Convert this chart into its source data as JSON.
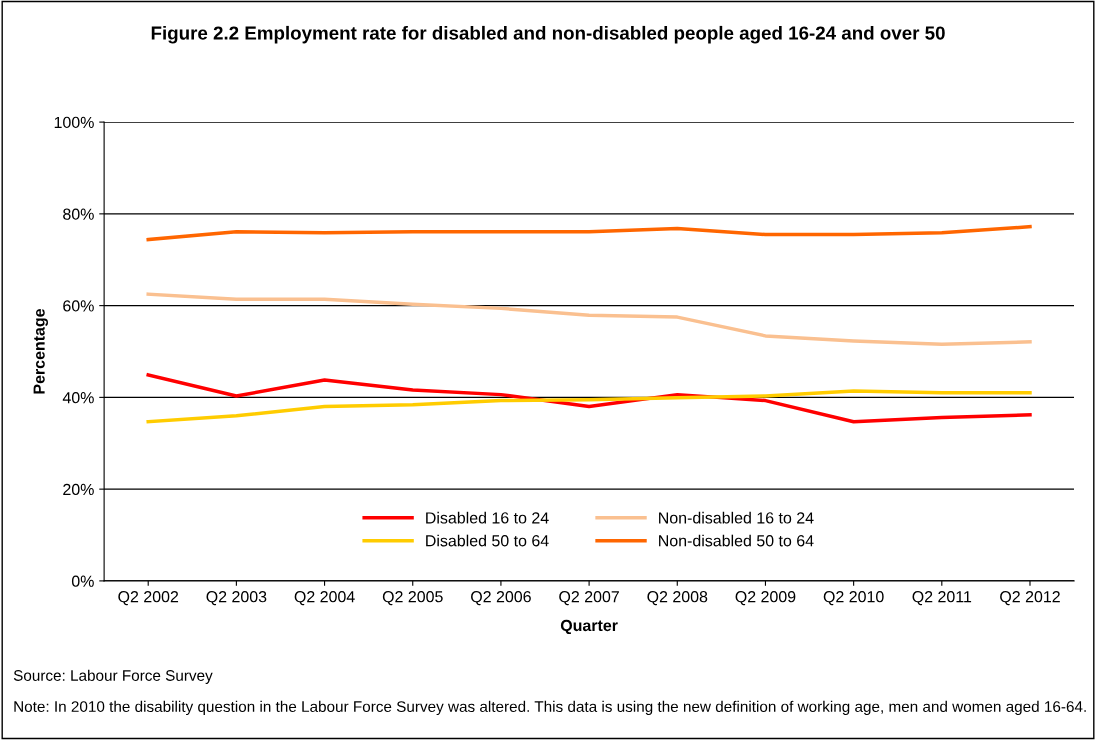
{
  "chart_data": {
    "type": "line",
    "title": "Figure 2.2 Employment rate for disabled and non-disabled people aged 16-24 and over 50",
    "xlabel": "Quarter",
    "ylabel": "Percentage",
    "categories": [
      "Q2 2002",
      "Q2 2003",
      "Q2 2004",
      "Q2 2005",
      "Q2 2006",
      "Q2 2007",
      "Q2 2008",
      "Q2 2009",
      "Q2 2010",
      "Q2 2011",
      "Q2 2012"
    ],
    "series": [
      {
        "name": "Disabled 16 to 24",
        "color": "#ff0000",
        "values": [
          44.9,
          40.3,
          43.8,
          41.6,
          40.6,
          38.0,
          40.6,
          39.3,
          34.7,
          35.6,
          36.2
        ]
      },
      {
        "name": "Disabled 50 to 64",
        "color": "#ffcc00",
        "values": [
          34.7,
          36.0,
          38.0,
          38.4,
          39.3,
          39.5,
          39.9,
          40.3,
          41.4,
          41.0,
          41.0
        ]
      },
      {
        "name": "Non-disabled 16 to 24",
        "color": "#fac090",
        "values": [
          62.5,
          61.4,
          61.4,
          60.3,
          59.4,
          57.9,
          57.5,
          53.4,
          52.3,
          51.6,
          52.1
        ]
      },
      {
        "name": "Non-disabled 50 to 64",
        "color": "#ff6600",
        "values": [
          74.4,
          76.1,
          75.9,
          76.1,
          76.1,
          76.1,
          76.8,
          75.5,
          75.5,
          75.9,
          77.2
        ]
      }
    ],
    "ylim": [
      0,
      100
    ],
    "yticks": [
      {
        "value": 0,
        "label": "0%"
      },
      {
        "value": 20,
        "label": "20%"
      },
      {
        "value": 40,
        "label": "40%"
      },
      {
        "value": 60,
        "label": "60%"
      },
      {
        "value": 80,
        "label": "80%"
      },
      {
        "value": 100,
        "label": "100%"
      }
    ],
    "grid": "y",
    "legend": "bottom",
    "marker": "none",
    "line_style": "solid",
    "annotations": [
      "Source: Labour Force Survey",
      "Note: In 2010 the disability question in the Labour Force Survey was altered. This data is using the new definition of working age, men and women aged 16-64."
    ]
  }
}
